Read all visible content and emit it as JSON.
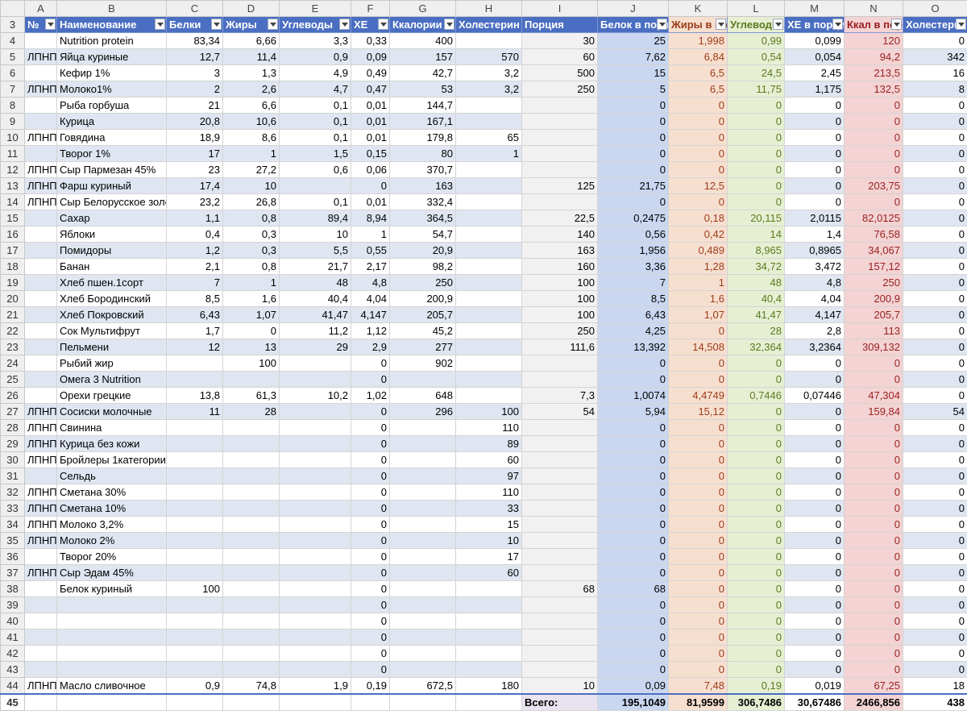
{
  "column_letters": [
    "A",
    "B",
    "C",
    "D",
    "E",
    "F",
    "G",
    "H",
    "I",
    "J",
    "K",
    "L",
    "M",
    "N",
    "O"
  ],
  "header": {
    "row_number": "3",
    "labels": [
      "№",
      "Наименование",
      "Белки",
      "Жиры",
      "Углеводы",
      "ХЕ",
      "Ккалории",
      "Холестерин",
      "Порция",
      "Белок в порции",
      "Жиры в порции",
      "Углеводы в порции",
      "ХЕ в порции",
      "Ккал в порции",
      "Холестерин в порции"
    ],
    "has_filter": [
      true,
      true,
      true,
      true,
      true,
      true,
      true,
      false,
      false,
      true,
      true,
      true,
      true,
      true,
      true
    ]
  },
  "rows": [
    {
      "n": "4",
      "cells": [
        "",
        "Nutrition protein",
        "83,34",
        "6,66",
        "3,3",
        "0,33",
        "400",
        "",
        "30",
        "25",
        "1,998",
        "0,99",
        "0,099",
        "120",
        "0"
      ]
    },
    {
      "n": "5",
      "cells": [
        "ЛПНП",
        "Яйца куриные",
        "12,7",
        "11,4",
        "0,9",
        "0,09",
        "157",
        "570",
        "60",
        "7,62",
        "6,84",
        "0,54",
        "0,054",
        "94,2",
        "342"
      ]
    },
    {
      "n": "6",
      "cells": [
        "",
        "Кефир 1%",
        "3",
        "1,3",
        "4,9",
        "0,49",
        "42,7",
        "3,2",
        "500",
        "15",
        "6,5",
        "24,5",
        "2,45",
        "213,5",
        "16"
      ]
    },
    {
      "n": "7",
      "cells": [
        "ЛПНП",
        "Молоко1%",
        "2",
        "2,6",
        "4,7",
        "0,47",
        "53",
        "3,2",
        "250",
        "5",
        "6,5",
        "11,75",
        "1,175",
        "132,5",
        "8"
      ]
    },
    {
      "n": "8",
      "cells": [
        "",
        "Рыба горбуша",
        "21",
        "6,6",
        "0,1",
        "0,01",
        "144,7",
        "",
        "",
        "0",
        "0",
        "0",
        "0",
        "0",
        "0"
      ]
    },
    {
      "n": "9",
      "cells": [
        "",
        "Курица",
        "20,8",
        "10,6",
        "0,1",
        "0,01",
        "167,1",
        "",
        "",
        "0",
        "0",
        "0",
        "0",
        "0",
        "0"
      ]
    },
    {
      "n": "10",
      "cells": [
        "ЛПНП",
        "Говядина",
        "18,9",
        "8,6",
        "0,1",
        "0,01",
        "179,8",
        "65",
        "",
        "0",
        "0",
        "0",
        "0",
        "0",
        "0"
      ]
    },
    {
      "n": "11",
      "cells": [
        "",
        "Творог 1%",
        "17",
        "1",
        "1,5",
        "0,15",
        "80",
        "1",
        "",
        "0",
        "0",
        "0",
        "0",
        "0",
        "0"
      ]
    },
    {
      "n": "12",
      "cells": [
        "ЛПНП",
        "Сыр Пармезан 45%",
        "23",
        "27,2",
        "0,6",
        "0,06",
        "370,7",
        "",
        "",
        "0",
        "0",
        "0",
        "0",
        "0",
        "0"
      ]
    },
    {
      "n": "13",
      "cells": [
        "ЛПНП",
        "Фарш куриный",
        "17,4",
        "10",
        "",
        "0",
        "163",
        "",
        "125",
        "21,75",
        "12,5",
        "0",
        "0",
        "203,75",
        "0"
      ]
    },
    {
      "n": "14",
      "cells": [
        "ЛПНП",
        "Сыр Белорусское золото",
        "23,2",
        "26,8",
        "0,1",
        "0,01",
        "332,4",
        "",
        "",
        "0",
        "0",
        "0",
        "0",
        "0",
        "0"
      ]
    },
    {
      "n": "15",
      "cells": [
        "",
        "Сахар",
        "1,1",
        "0,8",
        "89,4",
        "8,94",
        "364,5",
        "",
        "22,5",
        "0,2475",
        "0,18",
        "20,115",
        "2,0115",
        "82,0125",
        "0"
      ]
    },
    {
      "n": "16",
      "cells": [
        "",
        "Яблоки",
        "0,4",
        "0,3",
        "10",
        "1",
        "54,7",
        "",
        "140",
        "0,56",
        "0,42",
        "14",
        "1,4",
        "76,58",
        "0"
      ]
    },
    {
      "n": "17",
      "cells": [
        "",
        "Помидоры",
        "1,2",
        "0,3",
        "5,5",
        "0,55",
        "20,9",
        "",
        "163",
        "1,956",
        "0,489",
        "8,965",
        "0,8965",
        "34,067",
        "0"
      ]
    },
    {
      "n": "18",
      "cells": [
        "",
        "Банан",
        "2,1",
        "0,8",
        "21,7",
        "2,17",
        "98,2",
        "",
        "160",
        "3,36",
        "1,28",
        "34,72",
        "3,472",
        "157,12",
        "0"
      ]
    },
    {
      "n": "19",
      "cells": [
        "",
        "Хлеб пшен.1сорт",
        "7",
        "1",
        "48",
        "4,8",
        "250",
        "",
        "100",
        "7",
        "1",
        "48",
        "4,8",
        "250",
        "0"
      ]
    },
    {
      "n": "20",
      "cells": [
        "",
        "Хлеб Бородинский",
        "8,5",
        "1,6",
        "40,4",
        "4,04",
        "200,9",
        "",
        "100",
        "8,5",
        "1,6",
        "40,4",
        "4,04",
        "200,9",
        "0"
      ]
    },
    {
      "n": "21",
      "cells": [
        "",
        "Хлеб Покровский",
        "6,43",
        "1,07",
        "41,47",
        "4,147",
        "205,7",
        "",
        "100",
        "6,43",
        "1,07",
        "41,47",
        "4,147",
        "205,7",
        "0"
      ]
    },
    {
      "n": "22",
      "cells": [
        "",
        "Сок Мультифрут",
        "1,7",
        "0",
        "11,2",
        "1,12",
        "45,2",
        "",
        "250",
        "4,25",
        "0",
        "28",
        "2,8",
        "113",
        "0"
      ]
    },
    {
      "n": "23",
      "cells": [
        "",
        "Пельмени",
        "12",
        "13",
        "29",
        "2,9",
        "277",
        "",
        "111,6",
        "13,392",
        "14,508",
        "32,364",
        "3,2364",
        "309,132",
        "0"
      ]
    },
    {
      "n": "24",
      "cells": [
        "",
        "Рыбий жир",
        "",
        "100",
        "",
        "0",
        "902",
        "",
        "",
        "0",
        "0",
        "0",
        "0",
        "0",
        "0"
      ]
    },
    {
      "n": "25",
      "cells": [
        "",
        "Омега 3 Nutrition",
        "",
        "",
        "",
        "0",
        "",
        "",
        "",
        "0",
        "0",
        "0",
        "0",
        "0",
        "0"
      ]
    },
    {
      "n": "26",
      "cells": [
        "",
        "Орехи грецкие",
        "13,8",
        "61,3",
        "10,2",
        "1,02",
        "648",
        "",
        "7,3",
        "1,0074",
        "4,4749",
        "0,7446",
        "0,07446",
        "47,304",
        "0"
      ]
    },
    {
      "n": "27",
      "cells": [
        "ЛПНП",
        "Сосиски молочные",
        "11",
        "28",
        "",
        "0",
        "296",
        "100",
        "54",
        "5,94",
        "15,12",
        "0",
        "0",
        "159,84",
        "54"
      ]
    },
    {
      "n": "28",
      "cells": [
        "ЛПНП",
        "Свинина",
        "",
        "",
        "",
        "0",
        "",
        "110",
        "",
        "0",
        "0",
        "0",
        "0",
        "0",
        "0"
      ]
    },
    {
      "n": "29",
      "cells": [
        "ЛПНП",
        "Курица без кожи",
        "",
        "",
        "",
        "0",
        "",
        "89",
        "",
        "0",
        "0",
        "0",
        "0",
        "0",
        "0"
      ]
    },
    {
      "n": "30",
      "cells": [
        "ЛПНП",
        "Бройлеры 1категории",
        "",
        "",
        "",
        "0",
        "",
        "60",
        "",
        "0",
        "0",
        "0",
        "0",
        "0",
        "0"
      ]
    },
    {
      "n": "31",
      "cells": [
        "",
        "Сельдь",
        "",
        "",
        "",
        "0",
        "",
        "97",
        "",
        "0",
        "0",
        "0",
        "0",
        "0",
        "0"
      ]
    },
    {
      "n": "32",
      "cells": [
        "ЛПНП",
        "Сметана 30%",
        "",
        "",
        "",
        "0",
        "",
        "110",
        "",
        "0",
        "0",
        "0",
        "0",
        "0",
        "0"
      ]
    },
    {
      "n": "33",
      "cells": [
        "ЛПНП",
        "Сметана 10%",
        "",
        "",
        "",
        "0",
        "",
        "33",
        "",
        "0",
        "0",
        "0",
        "0",
        "0",
        "0"
      ]
    },
    {
      "n": "34",
      "cells": [
        "ЛПНП",
        "Молоко 3,2%",
        "",
        "",
        "",
        "0",
        "",
        "15",
        "",
        "0",
        "0",
        "0",
        "0",
        "0",
        "0"
      ]
    },
    {
      "n": "35",
      "cells": [
        "ЛПНП",
        "Молоко 2%",
        "",
        "",
        "",
        "0",
        "",
        "10",
        "",
        "0",
        "0",
        "0",
        "0",
        "0",
        "0"
      ]
    },
    {
      "n": "36",
      "cells": [
        "",
        "Творог 20%",
        "",
        "",
        "",
        "0",
        "",
        "17",
        "",
        "0",
        "0",
        "0",
        "0",
        "0",
        "0"
      ]
    },
    {
      "n": "37",
      "cells": [
        "ЛПНП",
        "Сыр Эдам 45%",
        "",
        "",
        "",
        "0",
        "",
        "60",
        "",
        "0",
        "0",
        "0",
        "0",
        "0",
        "0"
      ]
    },
    {
      "n": "38",
      "cells": [
        "",
        "Белок куриный",
        "100",
        "",
        "",
        "0",
        "",
        "",
        "68",
        "68",
        "0",
        "0",
        "0",
        "0",
        "0"
      ]
    },
    {
      "n": "39",
      "cells": [
        "",
        "",
        "",
        "",
        "",
        "0",
        "",
        "",
        "",
        "0",
        "0",
        "0",
        "0",
        "0",
        "0"
      ]
    },
    {
      "n": "40",
      "cells": [
        "",
        "",
        "",
        "",
        "",
        "0",
        "",
        "",
        "",
        "0",
        "0",
        "0",
        "0",
        "0",
        "0"
      ]
    },
    {
      "n": "41",
      "cells": [
        "",
        "",
        "",
        "",
        "",
        "0",
        "",
        "",
        "",
        "0",
        "0",
        "0",
        "0",
        "0",
        "0"
      ]
    },
    {
      "n": "42",
      "cells": [
        "",
        "",
        "",
        "",
        "",
        "0",
        "",
        "",
        "",
        "0",
        "0",
        "0",
        "0",
        "0",
        "0"
      ]
    },
    {
      "n": "43",
      "cells": [
        "",
        "",
        "",
        "",
        "",
        "0",
        "",
        "",
        "",
        "0",
        "0",
        "0",
        "0",
        "0",
        "0"
      ]
    },
    {
      "n": "44",
      "cells": [
        "ЛПНП",
        "Масло сливочное",
        "0,9",
        "74,8",
        "1,9",
        "0,19",
        "672,5",
        "180",
        "10",
        "0,09",
        "7,48",
        "0,19",
        "0,019",
        "67,25",
        "18"
      ]
    }
  ],
  "total_row": {
    "n": "45",
    "label": "Всего:",
    "cells": [
      "195,1049",
      "81,9599",
      "306,7486",
      "30,67486",
      "2466,856",
      "438"
    ]
  },
  "colors": {
    "header_blue": "#4a6ec1",
    "band_blue": "#dfe6f1",
    "portion_gray": "#f1f1f1",
    "protein_blue": "#c9d7f0",
    "fat_orange": "#f7dfd0",
    "carb_green": "#e7efd3",
    "kcal_red": "#f3d3d3"
  }
}
